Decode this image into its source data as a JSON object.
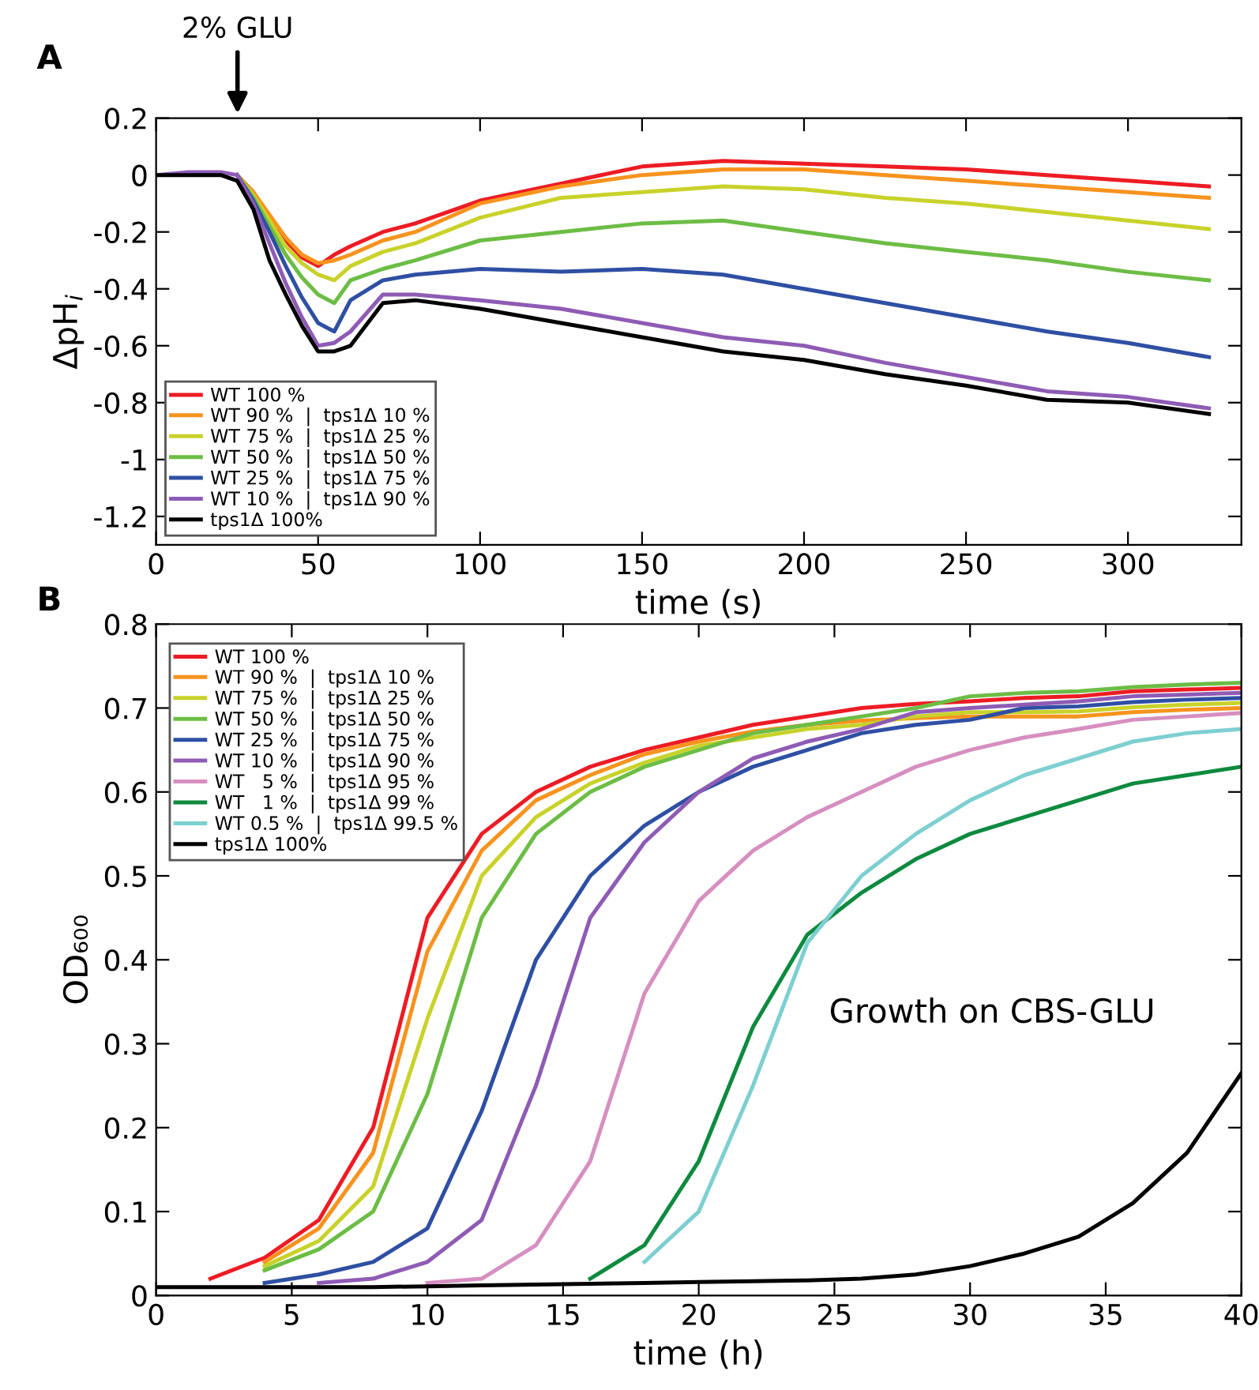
{
  "chart_data": [
    {
      "type": "line",
      "title": "A",
      "xlabel": "time (s)",
      "ylabel": "ΔpH$_{i}$",
      "xlim": [
        0,
        335
      ],
      "ylim": [
        -1.3,
        0.2
      ],
      "xticks": [
        0,
        50,
        100,
        150,
        200,
        250,
        300
      ],
      "yticks": [
        0.2,
        0,
        -0.2,
        -0.4,
        -0.6,
        -0.8,
        -1,
        -1.2
      ],
      "grid": false,
      "legend": "bottom left",
      "marker": "none",
      "line_style": "solid",
      "annotations": [
        "2% GLU"
      ],
      "x": [
        0,
        10,
        20,
        25,
        30,
        35,
        40,
        45,
        50,
        55,
        60,
        70,
        80,
        100,
        125,
        150,
        175,
        200,
        225,
        250,
        275,
        300,
        325
      ],
      "series": [
        {
          "name": "WT 100 %",
          "color": "#ed1c24",
          "values": [
            null,
            null,
            null,
            0,
            -0.06,
            -0.15,
            -0.23,
            -0.29,
            -0.32,
            -0.28,
            -0.25,
            -0.2,
            -0.17,
            -0.09,
            -0.03,
            0.03,
            0.05,
            0.04,
            0.03,
            0.02,
            0,
            -0.02,
            -0.04
          ]
        },
        {
          "name": "WT 90 %  |  tps1Δ 10 %",
          "color": "#f7931e",
          "values": [
            null,
            null,
            null,
            0,
            -0.06,
            -0.14,
            -0.22,
            -0.28,
            -0.31,
            -0.3,
            -0.28,
            -0.23,
            -0.2,
            -0.1,
            -0.04,
            0,
            0.02,
            0.02,
            0,
            -0.02,
            -0.04,
            -0.06,
            -0.08
          ]
        },
        {
          "name": "WT 75 %  |  tps1Δ 25 %",
          "color": "#c8d22a",
          "values": [
            null,
            null,
            null,
            0,
            -0.07,
            -0.16,
            -0.25,
            -0.31,
            -0.35,
            -0.37,
            -0.32,
            -0.27,
            -0.24,
            -0.15,
            -0.08,
            -0.06,
            -0.04,
            -0.05,
            -0.08,
            -0.1,
            -0.13,
            -0.16,
            -0.19
          ]
        },
        {
          "name": "WT 50 %  |  tps1Δ 50 %",
          "color": "#6cbd45",
          "values": [
            null,
            null,
            null,
            0,
            -0.08,
            -0.18,
            -0.28,
            -0.36,
            -0.42,
            -0.45,
            -0.37,
            -0.33,
            -0.3,
            -0.23,
            -0.2,
            -0.17,
            -0.16,
            -0.2,
            -0.24,
            -0.27,
            -0.3,
            -0.34,
            -0.37
          ]
        },
        {
          "name": "WT 25 %  |  tps1Δ 75 %",
          "color": "#2e4fa3",
          "values": [
            null,
            null,
            null,
            0,
            -0.09,
            -0.2,
            -0.32,
            -0.43,
            -0.52,
            -0.55,
            -0.44,
            -0.37,
            -0.35,
            -0.33,
            -0.34,
            -0.33,
            -0.35,
            -0.4,
            -0.45,
            -0.5,
            -0.55,
            -0.59,
            -0.64
          ]
        },
        {
          "name": "WT 10 %  |  tps1Δ 90 %",
          "color": "#8e5bb5",
          "values": [
            0,
            0.01,
            0.01,
            0,
            -0.1,
            -0.24,
            -0.38,
            -0.5,
            -0.6,
            -0.59,
            -0.55,
            -0.42,
            -0.42,
            -0.44,
            -0.47,
            -0.52,
            -0.57,
            -0.6,
            -0.66,
            -0.71,
            -0.76,
            -0.78,
            -0.82
          ]
        },
        {
          "name": "tps1Δ 100%",
          "color": "#000000",
          "values": [
            0,
            0,
            0,
            -0.02,
            -0.12,
            -0.3,
            -0.42,
            -0.53,
            -0.62,
            -0.62,
            -0.6,
            -0.45,
            -0.44,
            -0.47,
            -0.52,
            -0.57,
            -0.62,
            -0.65,
            -0.7,
            -0.74,
            -0.79,
            -0.8,
            -0.84
          ]
        }
      ]
    },
    {
      "type": "line",
      "title": "B",
      "xlabel": "time (h)",
      "ylabel": "OD₆₀₀",
      "xlim": [
        0,
        40
      ],
      "ylim": [
        0,
        0.8
      ],
      "xticks": [
        0,
        5,
        10,
        15,
        20,
        25,
        30,
        35,
        40
      ],
      "yticks": [
        0,
        0.1,
        0.2,
        0.3,
        0.4,
        0.5,
        0.6,
        0.7,
        0.8
      ],
      "grid": false,
      "legend": "top left",
      "marker": "none",
      "line_style": "solid",
      "annotations": [
        "Growth on CBS-GLU"
      ],
      "x": [
        0,
        2,
        4,
        6,
        8,
        10,
        12,
        14,
        16,
        18,
        20,
        22,
        24,
        26,
        28,
        30,
        32,
        34,
        36,
        38,
        40
      ],
      "series": [
        {
          "name": "WT 100 %",
          "color": "#ed1c24",
          "values": [
            null,
            0.02,
            0.045,
            0.09,
            0.2,
            0.45,
            0.55,
            0.6,
            0.63,
            0.65,
            0.665,
            0.68,
            0.69,
            0.7,
            0.705,
            0.708,
            0.712,
            0.714,
            0.72,
            0.722,
            0.724
          ]
        },
        {
          "name": "WT 90 %  |  tps1Δ 10 %",
          "color": "#f7931e",
          "values": [
            null,
            null,
            0.04,
            0.08,
            0.17,
            0.41,
            0.53,
            0.59,
            0.62,
            0.645,
            0.66,
            0.672,
            0.68,
            0.685,
            0.688,
            0.69,
            0.69,
            0.69,
            0.695,
            0.698,
            0.7
          ]
        },
        {
          "name": "WT 75 %  |  tps1Δ 25 %",
          "color": "#c8d22a",
          "values": [
            null,
            null,
            0.035,
            0.065,
            0.13,
            0.33,
            0.5,
            0.57,
            0.61,
            0.635,
            0.655,
            0.665,
            0.675,
            0.68,
            0.69,
            0.695,
            0.695,
            0.696,
            0.701,
            0.704,
            0.706
          ]
        },
        {
          "name": "WT 50 %  |  tps1Δ 50 %",
          "color": "#6cbd45",
          "values": [
            null,
            null,
            0.03,
            0.055,
            0.1,
            0.24,
            0.45,
            0.55,
            0.6,
            0.63,
            0.65,
            0.67,
            0.68,
            0.69,
            0.7,
            0.714,
            0.718,
            0.72,
            0.725,
            0.728,
            0.73
          ]
        },
        {
          "name": "WT 25 %  |  tps1Δ 75 %",
          "color": "#2e4fa3",
          "values": [
            null,
            null,
            0.015,
            0.025,
            0.04,
            0.08,
            0.22,
            0.4,
            0.5,
            0.56,
            0.6,
            0.63,
            0.65,
            0.67,
            0.68,
            0.686,
            0.7,
            0.702,
            0.707,
            0.71,
            0.712
          ]
        },
        {
          "name": "WT 10 %  |  tps1Δ 90 %",
          "color": "#8e5bb5",
          "values": [
            null,
            null,
            null,
            0.015,
            0.02,
            0.04,
            0.09,
            0.25,
            0.45,
            0.54,
            0.6,
            0.64,
            0.66,
            0.675,
            0.695,
            0.7,
            0.704,
            0.708,
            0.714,
            0.716,
            0.718
          ]
        },
        {
          "name": "WT   5 %  |  tps1Δ 95 %",
          "color": "#d68fc0",
          "values": [
            null,
            null,
            null,
            null,
            null,
            0.015,
            0.02,
            0.06,
            0.16,
            0.36,
            0.47,
            0.53,
            0.57,
            0.6,
            0.63,
            0.65,
            0.665,
            0.675,
            0.686,
            0.69,
            0.694
          ]
        },
        {
          "name": "WT   1 %  |  tps1Δ 99 %",
          "color": "#0d8a3f",
          "values": [
            null,
            null,
            null,
            null,
            null,
            null,
            null,
            null,
            0.02,
            0.06,
            0.16,
            0.32,
            0.43,
            0.48,
            0.52,
            0.55,
            0.57,
            0.59,
            0.61,
            0.62,
            0.63
          ]
        },
        {
          "name": "WT 0.5 %  |  tps1Δ 99.5 %",
          "color": "#7dcfd0",
          "values": [
            null,
            null,
            null,
            null,
            null,
            null,
            null,
            null,
            null,
            0.04,
            0.1,
            0.25,
            0.42,
            0.5,
            0.55,
            0.59,
            0.62,
            0.64,
            0.66,
            0.67,
            0.675
          ]
        },
        {
          "name": "tps1Δ 100%",
          "color": "#000000",
          "values": [
            0.01,
            0.01,
            0.01,
            0.01,
            0.01,
            0.011,
            0.012,
            0.013,
            0.014,
            0.015,
            0.016,
            0.017,
            0.018,
            0.02,
            0.025,
            0.035,
            0.05,
            0.07,
            0.11,
            0.17,
            0.265
          ]
        }
      ]
    }
  ]
}
